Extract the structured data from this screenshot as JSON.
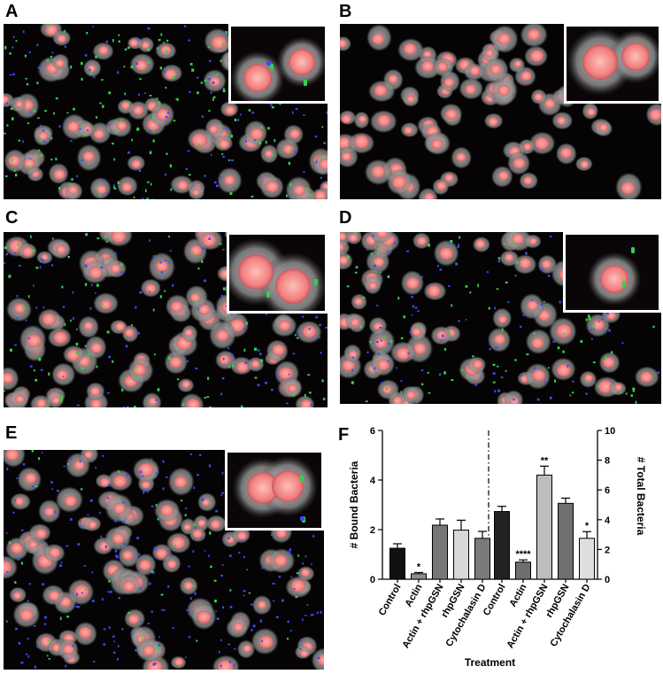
{
  "figure": {
    "panels": [
      {
        "letter": "A",
        "green_density": "high",
        "blue_density": "moderate"
      },
      {
        "letter": "B",
        "green_density": "none",
        "blue_density": "none"
      },
      {
        "letter": "C",
        "green_density": "moderate",
        "blue_density": "moderate"
      },
      {
        "letter": "D",
        "green_density": "moderate",
        "blue_density": "moderate"
      },
      {
        "letter": "E",
        "green_density": "low",
        "blue_density": "high"
      }
    ],
    "chart_letter": "F",
    "colors": {
      "nucleus": "#f08a8a",
      "cytoplasm": "#9a9a9a",
      "bound_bacteria": "#33d24a",
      "total_bacteria": "#3a4cff",
      "background": "#050304"
    }
  },
  "chart_data": {
    "type": "bar",
    "xlabel": "Treatment",
    "left_axis": {
      "label": "# Bound Bacteria",
      "ylim": [
        0,
        6
      ],
      "ticks": [
        0,
        2,
        4,
        6
      ]
    },
    "right_axis": {
      "label": "# Total Bacteria",
      "ylim": [
        0,
        10
      ],
      "ticks": [
        0,
        2,
        4,
        6,
        8,
        10
      ]
    },
    "groups": [
      {
        "axis": "left",
        "categories": [
          "Control",
          "Actin",
          "Actin + rhpGSN",
          "rhpGSN",
          "Cytochalasin D"
        ],
        "values": [
          1.25,
          0.22,
          2.18,
          1.98,
          1.65
        ],
        "errors": [
          0.18,
          0.05,
          0.25,
          0.4,
          0.28
        ],
        "significance": [
          "",
          "*",
          "",
          "",
          ""
        ],
        "colors": [
          "#111111",
          "#8e8e8e",
          "#777777",
          "#d8d8d8",
          "#7a7a7a"
        ]
      },
      {
        "axis": "right",
        "categories": [
          "Control",
          "Actin",
          "Actin + rhpGSN",
          "rhpGSN",
          "Cytochalasin D"
        ],
        "values": [
          4.55,
          1.15,
          7.0,
          5.1,
          2.75
        ],
        "errors": [
          0.35,
          0.15,
          0.6,
          0.35,
          0.45
        ],
        "significance": [
          "",
          "****",
          "**",
          "",
          "*"
        ],
        "colors": [
          "#222222",
          "#6e6e6e",
          "#bdbdbd",
          "#707070",
          "#dedede"
        ]
      }
    ]
  }
}
